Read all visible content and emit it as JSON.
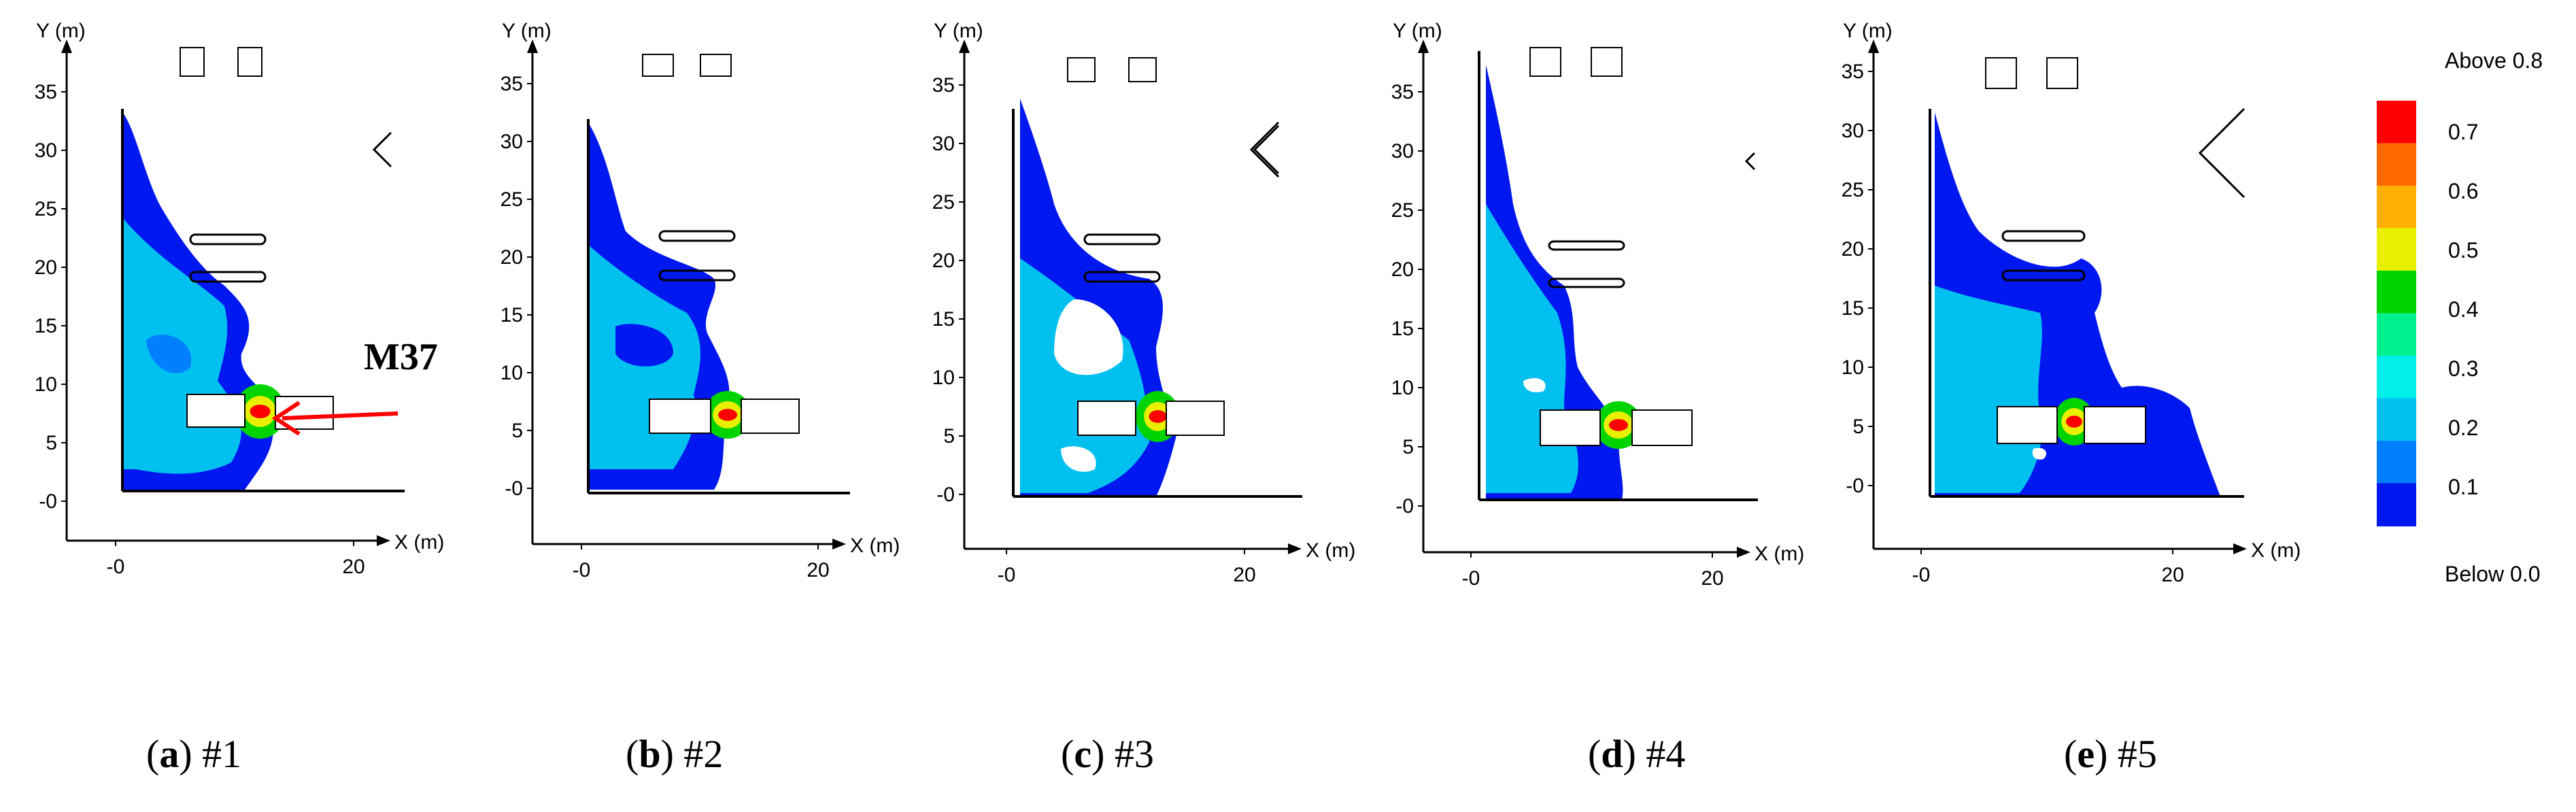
{
  "panels": [
    {
      "letter": "a",
      "label": "#1",
      "annotation": "M37"
    },
    {
      "letter": "b",
      "label": "#2"
    },
    {
      "letter": "c",
      "label": "#3"
    },
    {
      "letter": "d",
      "label": "#4"
    },
    {
      "letter": "e",
      "label": "#5"
    }
  ],
  "axes": {
    "y_label": "Y (m)",
    "x_label": "X (m)",
    "y_ticks": [
      "35",
      "30",
      "25",
      "20",
      "15",
      "10",
      "5",
      "-0"
    ],
    "x_ticks": [
      "-0",
      "20"
    ]
  },
  "legend": {
    "top_label": "Above 0.8",
    "bottom_label": "Below 0.0",
    "levels": [
      "0.7",
      "0.6",
      "0.5",
      "0.4",
      "0.3",
      "0.2",
      "0.1"
    ],
    "colors": [
      "#ff0000",
      "#ff6a00",
      "#ffb000",
      "#e8f000",
      "#00d400",
      "#00f090",
      "#00f0e8",
      "#00c0f0",
      "#0080ff",
      "#0018f0"
    ]
  },
  "colors": {
    "dark_blue": "#0018f0",
    "mid_blue": "#0080ff",
    "light_blue": "#00c0f0",
    "cyan": "#00f0e8",
    "green": "#00d400",
    "yellow": "#e8f000",
    "orange": "#ffb000",
    "red": "#ff0000"
  }
}
